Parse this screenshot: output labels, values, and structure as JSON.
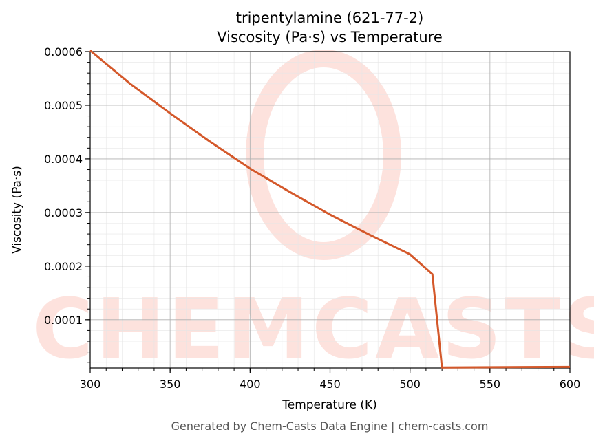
{
  "chart_data": {
    "type": "line",
    "title_line1": "tripentylamine (621-77-2)",
    "title_line2": "Viscosity (Pa·s) vs Temperature",
    "xlabel": "Temperature (K)",
    "ylabel": "Viscosity (Pa·s)",
    "xlim": [
      300,
      600
    ],
    "ylim": [
      1e-05,
      0.0006
    ],
    "xticks": [
      300,
      350,
      400,
      450,
      500,
      550,
      600
    ],
    "xtick_labels": [
      "300",
      "350",
      "400",
      "450",
      "500",
      "550",
      "600"
    ],
    "yticks": [
      0.0001,
      0.0002,
      0.0003,
      0.0004,
      0.0005,
      0.0006
    ],
    "ytick_labels": [
      "0.0001",
      "0.0002",
      "0.0003",
      "0.0004",
      "0.0005",
      "0.0006"
    ],
    "grid": true,
    "series": [
      {
        "color": "#d4582a",
        "x": [
          300,
          325,
          350,
          375,
          400,
          425,
          450,
          475,
          500,
          514,
          520,
          600
        ],
        "y": [
          0.000602,
          0.00054,
          0.000485,
          0.000432,
          0.000382,
          0.000338,
          0.000296,
          0.000258,
          0.000222,
          0.000185,
          1.1e-05,
          1.2e-05
        ]
      }
    ]
  },
  "watermark": {
    "text": "CHEMCASTS",
    "color": "#fde2dd"
  },
  "footer": "Generated by Chem-Casts Data Engine | chem-casts.com"
}
